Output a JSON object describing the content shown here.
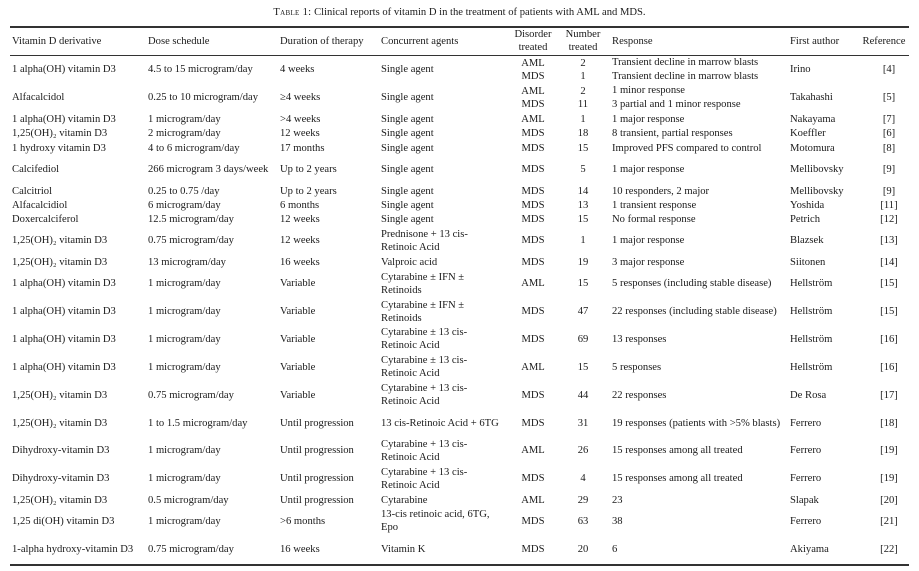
{
  "caption": {
    "label": "Table 1:",
    "text": "Clinical reports of vitamin D in the treatment of patients with AML and MDS."
  },
  "headers": [
    "Vitamin D derivative",
    "Dose schedule",
    "Duration of therapy",
    "Concurrent agents",
    "Disorder treated",
    "Number treated",
    "Response",
    "First author",
    "Reference"
  ],
  "rows": [
    {
      "derivative": "1 alpha(OH) vitamin D3",
      "dose": "4.5 to 15 microgram/day",
      "duration": "4 weeks",
      "agents": "Single agent",
      "disorder": [
        "AML",
        "MDS"
      ],
      "number": [
        "2",
        "1"
      ],
      "response": [
        "Transient decline in marrow blasts",
        "Transient decline in marrow blasts"
      ],
      "author": "Irino",
      "reference": "[4]"
    },
    {
      "derivative": "Alfacalcidol",
      "dose": "0.25 to 10 microgram/day",
      "duration": "≥4 weeks",
      "agents": "Single agent",
      "disorder": [
        "AML",
        "MDS"
      ],
      "number": [
        "2",
        "11"
      ],
      "response": [
        "1 minor response",
        "3 partial and 1 minor response"
      ],
      "author": "Takahashi",
      "reference": "[5]"
    },
    {
      "derivative": "1 alpha(OH) vitamin D3",
      "dose": "1 microgram/day",
      "duration": ">4 weeks",
      "agents": "Single agent",
      "disorder": "AML",
      "number": "1",
      "response": "1 major response",
      "author": "Nakayama",
      "reference": "[7]"
    },
    {
      "derivative": "1,25(OH)₂ vitamin D3",
      "dose": "2 microgram/day",
      "duration": "12 weeks",
      "agents": "Single agent",
      "disorder": "MDS",
      "number": "18",
      "response": "8 transient, partial responses",
      "author": "Koeffler",
      "reference": "[6]"
    },
    {
      "derivative": "1 hydroxy vitamin D3",
      "dose": "4 to 6 microgram/day",
      "duration": "17 months",
      "agents": "Single agent",
      "disorder": "MDS",
      "number": "15",
      "response": "Improved PFS compared to control",
      "author": "Motomura",
      "reference": "[8]"
    },
    {
      "derivative": "Calcifediol",
      "dose": "266 microgram 3 days/week",
      "duration": "Up to 2 years",
      "agents": "Single agent",
      "disorder": "MDS",
      "number": "5",
      "response": "1 major response",
      "author": "Mellibovsky",
      "reference": "[9]"
    },
    {
      "derivative": "Calcitriol",
      "dose": "0.25 to 0.75  /day",
      "duration": "Up to 2 years",
      "agents": "Single agent",
      "disorder": "MDS",
      "number": "14",
      "response": "10 responders, 2 major",
      "author": "Mellibovsky",
      "reference": "[9]"
    },
    {
      "derivative": "Alfacalcidiol",
      "dose": "6 microgram/day",
      "duration": "6 months",
      "agents": "Single agent",
      "disorder": "MDS",
      "number": "13",
      "response": "1 transient response",
      "author": "Yoshida",
      "reference": "[11]"
    },
    {
      "derivative": "Doxercalciferol",
      "dose": "12.5 microgram/day",
      "duration": "12 weeks",
      "agents": "Single agent",
      "disorder": "MDS",
      "number": "15",
      "response": "No formal response",
      "author": "Petrich",
      "reference": "[12]"
    },
    {
      "derivative": "1,25(OH)₂ vitamin D3",
      "dose": "0.75 microgram/day",
      "duration": "12 weeks",
      "agents": "Prednisone + 13 cis-Retinoic Acid",
      "disorder": "MDS",
      "number": "1",
      "response": "1 major response",
      "author": "Blazsek",
      "reference": "[13]"
    },
    {
      "derivative": "1,25(OH)₂ vitamin D3",
      "dose": "13 microgram/day",
      "duration": "16 weeks",
      "agents": "Valproic acid",
      "disorder": "MDS",
      "number": "19",
      "response": "3 major response",
      "author": "Siitonen",
      "reference": "[14]"
    },
    {
      "derivative": "1 alpha(OH) vitamin D3",
      "dose": "1 microgram/day",
      "duration": "Variable",
      "agents": "Cytarabine ± IFN ± Retinoids",
      "disorder": "AML",
      "number": "15",
      "response": "5 responses (including stable disease)",
      "author": "Hellström",
      "reference": "[15]"
    },
    {
      "derivative": "1 alpha(OH) vitamin D3",
      "dose": "1 microgram/day",
      "duration": "Variable",
      "agents": "Cytarabine ± IFN ± Retinoids",
      "disorder": "MDS",
      "number": "47",
      "response": "22 responses (including stable disease)",
      "author": "Hellström",
      "reference": "[15]"
    },
    {
      "derivative": "1 alpha(OH) vitamin D3",
      "dose": "1 microgram/day",
      "duration": "Variable",
      "agents": "Cytarabine ± 13 cis-Retinoic Acid",
      "disorder": "MDS",
      "number": "69",
      "response": "13 responses",
      "author": "Hellström",
      "reference": "[16]"
    },
    {
      "derivative": "1 alpha(OH) vitamin D3",
      "dose": "1 microgram/day",
      "duration": "Variable",
      "agents": "Cytarabine ± 13 cis-Retinoic Acid",
      "disorder": "AML",
      "number": "15",
      "response": "5 responses",
      "author": "Hellström",
      "reference": "[16]"
    },
    {
      "derivative": "1,25(OH)₂ vitamin D3",
      "dose": "0.75 microgram/day",
      "duration": "Variable",
      "agents": "Cytarabine + 13 cis-Retinoic Acid",
      "disorder": "MDS",
      "number": "44",
      "response": "22 responses",
      "author": "De Rosa",
      "reference": "[17]"
    },
    {
      "derivative": "1,25(OH)₂ vitamin D3",
      "dose": "1 to 1.5 microgram/day",
      "duration": "Until progression",
      "agents": "13 cis-Retinoic Acid + 6TG",
      "disorder": "MDS",
      "number": "31",
      "response": "19 responses (patients with >5% blasts)",
      "author": "Ferrero",
      "reference": "[18]"
    },
    {
      "derivative": "Dihydroxy-vitamin D3",
      "dose": "1 microgram/day",
      "duration": "Until progression",
      "agents": "Cytarabine + 13 cis-Retinoic Acid",
      "disorder": "AML",
      "number": "26",
      "response": "15 responses among all treated",
      "author": "Ferrero",
      "reference": "[19]"
    },
    {
      "derivative": "Dihydroxy-vitamin D3",
      "dose": "1 microgram/day",
      "duration": "Until progression",
      "agents": "Cytarabine + 13 cis-Retinoic Acid",
      "disorder": "MDS",
      "number": "4",
      "response": "15 responses among all treated",
      "author": "Ferrero",
      "reference": "[19]"
    },
    {
      "derivative": "1,25(OH)₂ vitamin D3",
      "dose": "0.5 microgram/day",
      "duration": "Until progression",
      "agents": "Cytarabine",
      "disorder": "AML",
      "number": "29",
      "response": "23",
      "author": "Slapak",
      "reference": "[20]"
    },
    {
      "derivative": "1,25 di(OH) vitamin D3",
      "dose": "1 microgram/day",
      "duration": ">6 months",
      "agents": "13-cis retinoic acid, 6TG, Epo",
      "disorder": "MDS",
      "number": "63",
      "response": "38",
      "author": "Ferrero",
      "reference": "[21]"
    },
    {
      "derivative": "1-alpha hydroxy-vitamin D3",
      "dose": "0.75 microgram/day",
      "duration": "16 weeks",
      "agents": "Vitamin K",
      "disorder": "MDS",
      "number": "20",
      "response": "6",
      "author": "Akiyama",
      "reference": "[22]"
    }
  ]
}
